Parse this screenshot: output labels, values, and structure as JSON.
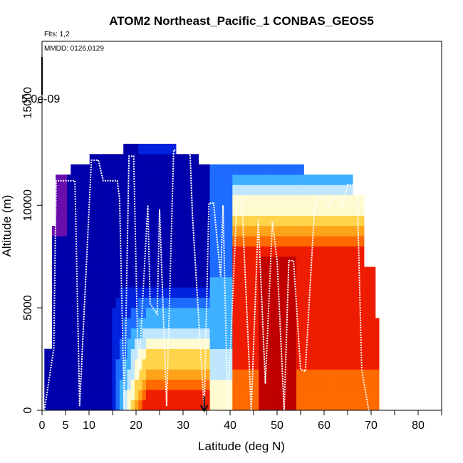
{
  "chart_data": {
    "type": "heatmap",
    "title": "ATOM2 Northeast_Pacific_1 CONBAS_GEOS5",
    "flights_note": "Flts: 1,2",
    "dates_note": "MMDD: 0126,0129",
    "xlabel": "Latitude (deg N)",
    "ylabel": "Altitude (m)",
    "xlim": [
      0,
      85
    ],
    "ylim": [
      0,
      18000
    ],
    "x_ticks": [
      0,
      5,
      10,
      20,
      30,
      40,
      50,
      60,
      70,
      80
    ],
    "x_minor_ticks": [
      15,
      25,
      35,
      45,
      55,
      65,
      75,
      85
    ],
    "y_ticks": [
      0,
      5000,
      10000,
      15000
    ],
    "colorbar_label": "5.0e-09",
    "arrow_latitude": 34.5,
    "palette": [
      "#6a0dad",
      "#0000aa",
      "#0022dd",
      "#1e6cff",
      "#3fb0ff",
      "#bfe6ff",
      "#fffbd0",
      "#ffd34a",
      "#ffa31a",
      "#ff6a00",
      "#ee1c00",
      "#c00000"
    ],
    "flight_track": [
      [
        0.5,
        0
      ],
      [
        2.5,
        3000
      ],
      [
        3,
        11200
      ],
      [
        7,
        11200
      ],
      [
        8,
        200
      ],
      [
        10.5,
        12200
      ],
      [
        12,
        12200
      ],
      [
        13,
        11200
      ],
      [
        16,
        11200
      ],
      [
        16.5,
        10300
      ],
      [
        17.5,
        0
      ],
      [
        18.5,
        12400
      ],
      [
        19.5,
        12400
      ],
      [
        20.5,
        1500
      ],
      [
        22.5,
        10000
      ],
      [
        23,
        5200
      ],
      [
        24.5,
        4700
      ],
      [
        25,
        9800
      ],
      [
        26.5,
        200
      ],
      [
        28,
        12700
      ],
      [
        31.5,
        12500
      ],
      [
        32,
        9500
      ],
      [
        34.5,
        0
      ],
      [
        35.5,
        10100
      ],
      [
        36.5,
        10100
      ],
      [
        38,
        6500
      ],
      [
        38.5,
        10000
      ],
      [
        39.5,
        0
      ],
      [
        41.5,
        10400
      ],
      [
        42.5,
        10300
      ],
      [
        44.5,
        0
      ],
      [
        46,
        9300
      ],
      [
        47.5,
        1300
      ],
      [
        49,
        9200
      ],
      [
        50,
        7300
      ],
      [
        51.5,
        0
      ],
      [
        52.5,
        7300
      ],
      [
        53.5,
        7300
      ],
      [
        55,
        2000
      ],
      [
        56,
        1900
      ],
      [
        58,
        10000
      ],
      [
        59,
        10400
      ],
      [
        60,
        10300
      ],
      [
        61,
        9900
      ],
      [
        62,
        10400
      ],
      [
        63,
        10400
      ],
      [
        64,
        9900
      ],
      [
        65,
        11000
      ],
      [
        67,
        11000
      ],
      [
        68,
        2000
      ],
      [
        69.5,
        0
      ]
    ]
  }
}
